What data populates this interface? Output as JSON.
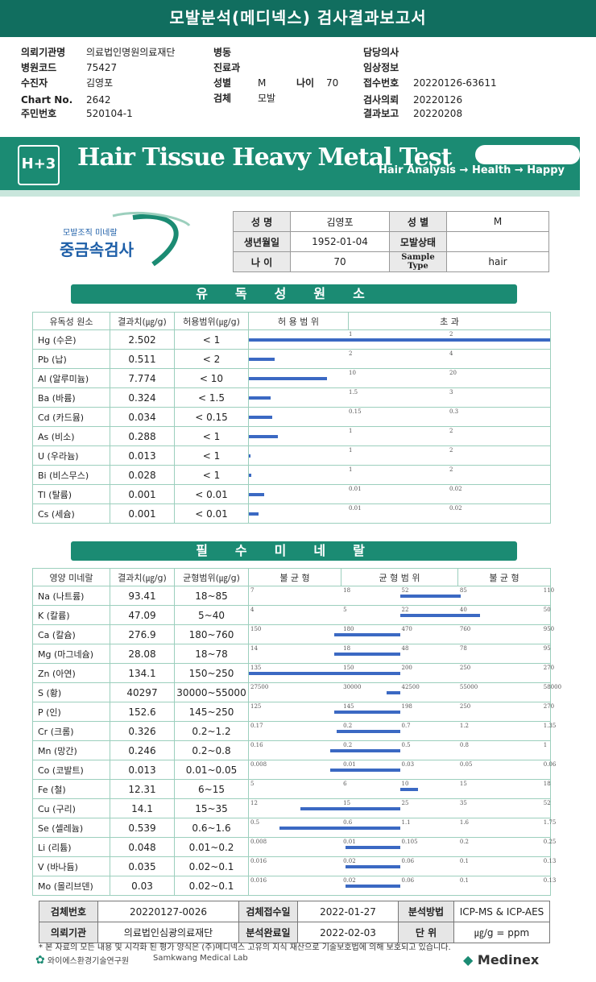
{
  "title": "모발분석(메디넥스) 검사결과보고서",
  "header": {
    "inst_label": "의뢰기관명",
    "inst_value": "의료법인명원의료재단",
    "code_label": "병원코드",
    "code_value": "75427",
    "patient_label": "수진자",
    "patient_value": "김영포",
    "chart_label": "Chart No.",
    "chart_value": "2642",
    "rrn_label": "주민번호",
    "rrn_value": "520104-1",
    "ward_label": "병동",
    "dept_label": "진료과",
    "sex_label": "성별",
    "sex_value": "M",
    "age_label": "나이",
    "age_value": "70",
    "specimen_label": "검체",
    "specimen_value": "모발",
    "doctor_label": "담당의사",
    "clinical_label": "임상정보",
    "receipt_label": "접수번호",
    "receipt_value": "20220126-63611",
    "request_label": "검사의뢰",
    "request_value": "20220126",
    "report_label": "결과보고",
    "report_value": "20220208"
  },
  "banner": {
    "title": "Hair Tissue Heavy Metal Test",
    "sub": "Hair Analysis → Health → Happy",
    "badge": "H+3"
  },
  "logo": {
    "small": "모발조직 미네랄",
    "big": "중금속검사"
  },
  "patient_info": {
    "name_label": "성 명",
    "name_value": "김영포",
    "sex_label": "성 별",
    "sex_value": "M",
    "dob_label": "생년월일",
    "dob_value": "1952-01-04",
    "hair_label": "모발상태",
    "hair_value": "",
    "age_label": "나 이",
    "age_value": "70",
    "sample_label": "Sample Type",
    "sample_value": "hair"
  },
  "toxic": {
    "section_title": "유독성원소",
    "headers": [
      "유독성 원소",
      "결과치(㎍/g)",
      "허용범위(㎍/g)",
      "허 용 범 위",
      "초 과"
    ],
    "rows": [
      {
        "name": "Hg (수은)",
        "value": "2.502",
        "range": "< 1",
        "t1": "1",
        "t2": "2",
        "fill": 1.0
      },
      {
        "name": "Pb (납)",
        "value": "0.511",
        "range": "< 2",
        "t1": "2",
        "t2": "4",
        "fill": 0.26
      },
      {
        "name": "Al (알루미늄)",
        "value": "7.774",
        "range": "< 10",
        "t1": "10",
        "t2": "20",
        "fill": 0.78
      },
      {
        "name": "Ba (바륨)",
        "value": "0.324",
        "range": "< 1.5",
        "t1": "1.5",
        "t2": "3",
        "fill": 0.22
      },
      {
        "name": "Cd (카드뮴)",
        "value": "0.034",
        "range": "< 0.15",
        "t1": "0.15",
        "t2": "0.3",
        "fill": 0.23
      },
      {
        "name": "As (비소)",
        "value": "0.288",
        "range": "< 1",
        "t1": "1",
        "t2": "2",
        "fill": 0.29
      },
      {
        "name": "U (우라늄)",
        "value": "0.013",
        "range": "< 1",
        "t1": "1",
        "t2": "2",
        "fill": 0.013
      },
      {
        "name": "Bi (비스무스)",
        "value": "0.028",
        "range": "< 1",
        "t1": "1",
        "t2": "2",
        "fill": 0.028
      },
      {
        "name": "Tl (탈륨)",
        "value": "0.001",
        "range": "< 0.01",
        "t1": "0.01",
        "t2": "0.02",
        "fill": 0.15
      },
      {
        "name": "Cs (세슘)",
        "value": "0.001",
        "range": "< 0.01",
        "t1": "0.01",
        "t2": "0.02",
        "fill": 0.1
      }
    ]
  },
  "minerals": {
    "section_title": "필수미네랄",
    "headers": [
      "영양 미네랄",
      "결과치(㎍/g)",
      "균형범위(㎍/g)",
      "불 균 형",
      "균 형 범 위",
      "불 균 형"
    ],
    "rows": [
      {
        "name": "Na (나트륨)",
        "value": "93.41",
        "range": "18~85",
        "ticks": [
          "7",
          "18",
          "52",
          "85",
          "110"
        ],
        "from": 0.5,
        "to": 0.7
      },
      {
        "name": "K (칼륨)",
        "value": "47.09",
        "range": "5~40",
        "ticks": [
          "4",
          "5",
          "22",
          "40",
          "50"
        ],
        "from": 0.5,
        "to": 0.765
      },
      {
        "name": "Ca (칼슘)",
        "value": "276.9",
        "range": "180~760",
        "ticks": [
          "150",
          "180",
          "470",
          "760",
          "950"
        ],
        "from": 0.283,
        "to": 0.5
      },
      {
        "name": "Mg (마그네슘)",
        "value": "28.08",
        "range": "18~78",
        "ticks": [
          "14",
          "18",
          "48",
          "78",
          "95"
        ],
        "from": 0.283,
        "to": 0.5
      },
      {
        "name": "Zn (아연)",
        "value": "134.1",
        "range": "150~250",
        "ticks": [
          "135",
          "150",
          "200",
          "250",
          "270"
        ],
        "from": 0.0,
        "to": 0.5
      },
      {
        "name": "S (황)",
        "value": "40297",
        "range": "30000~55000",
        "ticks": [
          "27500",
          "30000",
          "42500",
          "55000",
          "58000"
        ],
        "from": 0.455,
        "to": 0.5
      },
      {
        "name": "P (인)",
        "value": "152.6",
        "range": "145~250",
        "ticks": [
          "125",
          "145",
          "198",
          "250",
          "270"
        ],
        "from": 0.283,
        "to": 0.5
      },
      {
        "name": "Cr (크롬)",
        "value": "0.326",
        "range": "0.2~1.2",
        "ticks": [
          "0.17",
          "0.2",
          "0.7",
          "1.2",
          "1.35"
        ],
        "from": 0.29,
        "to": 0.5
      },
      {
        "name": "Mn (망간)",
        "value": "0.246",
        "range": "0.2~0.8",
        "ticks": [
          "0.16",
          "0.2",
          "0.5",
          "0.8",
          "1"
        ],
        "from": 0.27,
        "to": 0.5
      },
      {
        "name": "Co (코발트)",
        "value": "0.013",
        "range": "0.01~0.05",
        "ticks": [
          "0.008",
          "0.01",
          "0.03",
          "0.05",
          "0.06"
        ],
        "from": 0.27,
        "to": 0.5
      },
      {
        "name": "Fe (철)",
        "value": "12.31",
        "range": "6~15",
        "ticks": [
          "5",
          "6",
          "10",
          "15",
          "18"
        ],
        "from": 0.5,
        "to": 0.56
      },
      {
        "name": "Cu (구리)",
        "value": "14.1",
        "range": "15~35",
        "ticks": [
          "12",
          "15",
          "25",
          "35",
          "52"
        ],
        "from": 0.17,
        "to": 0.5
      },
      {
        "name": "Se (셀레늄)",
        "value": "0.539",
        "range": "0.6~1.6",
        "ticks": [
          "0.5",
          "0.6",
          "1.1",
          "1.6",
          "1.75"
        ],
        "from": 0.1,
        "to": 0.5
      },
      {
        "name": "Li (리튬)",
        "value": "0.048",
        "range": "0.01~0.2",
        "ticks": [
          "0.008",
          "0.01",
          "0.105",
          "0.2",
          "0.25"
        ],
        "from": 0.32,
        "to": 0.5
      },
      {
        "name": "V (바나듐)",
        "value": "0.035",
        "range": "0.02~0.1",
        "ticks": [
          "0.016",
          "0.02",
          "0.06",
          "0.1",
          "0.13"
        ],
        "from": 0.32,
        "to": 0.5
      },
      {
        "name": "Mo (몰리브덴)",
        "value": "0.03",
        "range": "0.02~0.1",
        "ticks": [
          "0.016",
          "0.02",
          "0.06",
          "0.1",
          "0.13"
        ],
        "from": 0.32,
        "to": 0.5
      }
    ]
  },
  "footer_table": {
    "specimen_no_label": "검체번호",
    "specimen_no_value": "20220127-0026",
    "received_label": "검체접수일",
    "received_value": "2022-01-27",
    "method_label": "분석방법",
    "method_value": "ICP-MS & ICP-AES",
    "requester_label": "의뢰기관",
    "requester_value": "의료법인심광의료재단",
    "done_label": "분석완료일",
    "done_value": "2022-02-03",
    "unit_label": "단 위",
    "unit_value": "㎍/g = ppm"
  },
  "notice": "* 본 자료의 모든 내용 및 시각화 된 평가 양식은 (주)메디넥스 고유의 지식 재산으로 기술보호법에 의해 보호되고 있습니다.",
  "footer_logos": {
    "institute": "와이에스환경기술연구원",
    "lab": "Samkwang Medical Lab",
    "brand": "Medinex"
  }
}
